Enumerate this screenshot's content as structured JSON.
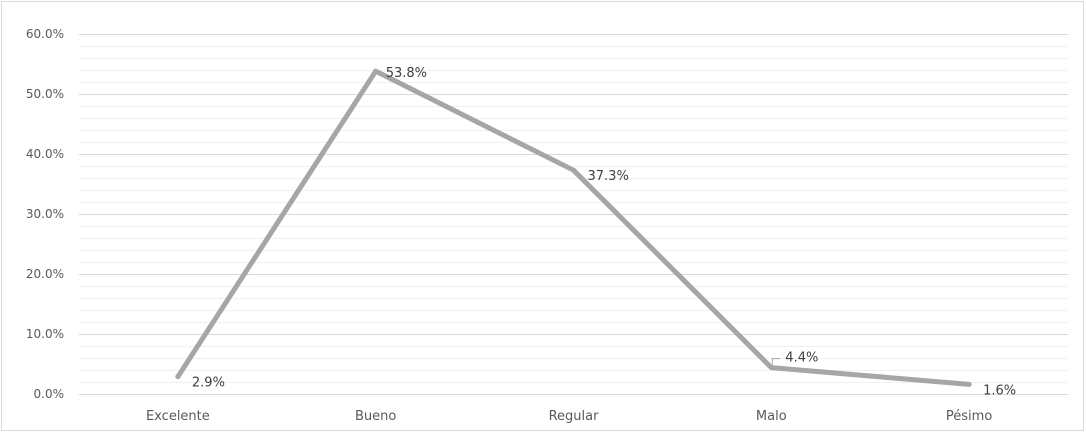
{
  "chart_data": {
    "type": "line",
    "categories": [
      "Excelente",
      "Bueno",
      "Regular",
      "Malo",
      "Pésimo"
    ],
    "series": [
      {
        "values": [
          2.9,
          53.8,
          37.3,
          4.4,
          1.6
        ],
        "labels": [
          "2.9%",
          "53.8%",
          "37.3%",
          "4.4%",
          "1.6%"
        ]
      }
    ],
    "ylim": [
      0,
      60
    ],
    "yticks": [
      "0.0%",
      "10.0%",
      "20.0%",
      "30.0%",
      "40.0%",
      "50.0%",
      "60.0%"
    ],
    "minor_step": 2,
    "major_step": 10,
    "grid": true,
    "line_color": "#a6a6a6",
    "grid_color": "#d9d9d9",
    "minor_grid_color": "#f0f0f0"
  }
}
